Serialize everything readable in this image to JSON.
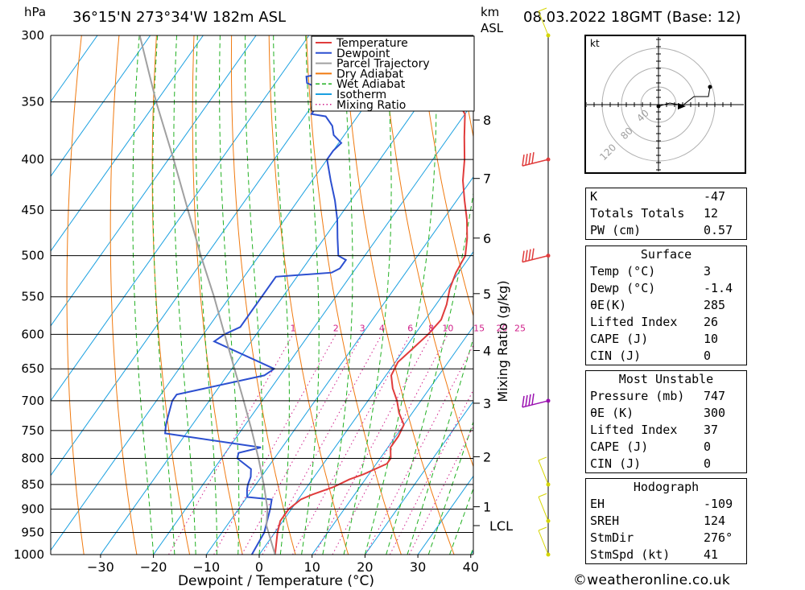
{
  "header": {
    "location": "36°15'N  273°34'W  182m  ASL",
    "datetime": "08.03.2022  18GMT  (Base: 12)",
    "hpa_label": "hPa",
    "km_label": "km",
    "asl_label": "ASL"
  },
  "chart_data": {
    "type": "line",
    "subtype": "skew-t log-p diagram",
    "xlabel": "Dewpoint / Temperature (°C)",
    "ylabel_right": "Mixing Ratio (g/kg)",
    "x_ticks": [
      -30,
      -20,
      -10,
      0,
      10,
      20,
      30,
      40
    ],
    "xlim": [
      -40,
      40
    ],
    "pressure_levels": [
      300,
      350,
      400,
      450,
      500,
      550,
      600,
      650,
      700,
      750,
      800,
      850,
      900,
      950,
      1000
    ],
    "ylim_hpa": [
      1000,
      300
    ],
    "km_ticks": [
      {
        "label": "1",
        "p": 895
      },
      {
        "label": "2",
        "p": 797
      },
      {
        "label": "3",
        "p": 704
      },
      {
        "label": "4",
        "p": 623
      },
      {
        "label": "5",
        "p": 546
      },
      {
        "label": "6",
        "p": 480
      },
      {
        "label": "7",
        "p": 418
      },
      {
        "label": "8",
        "p": 365
      }
    ],
    "lcl": {
      "label": "LCL",
      "p": 935
    },
    "mixing_ratio_labels": [
      "1",
      "2",
      "3",
      "4",
      "6",
      "8",
      "10",
      "15",
      "20",
      "25"
    ],
    "legend": {
      "placement": "top-right",
      "entries": [
        {
          "name": "Temperature",
          "color": "#e03c3c",
          "style": "solid"
        },
        {
          "name": "Dewpoint",
          "color": "#2c4fd0",
          "style": "solid"
        },
        {
          "name": "Parcel Trajectory",
          "color": "#a0a0a0",
          "style": "solid"
        },
        {
          "name": "Dry Adiabat",
          "color": "#f07a10",
          "style": "solid"
        },
        {
          "name": "Wet Adiabat",
          "color": "#22b022",
          "style": "dashed"
        },
        {
          "name": "Isotherm",
          "color": "#1aa0e0",
          "style": "solid"
        },
        {
          "name": "Mixing Ratio",
          "color": "#d0208a",
          "style": "dotted"
        }
      ]
    },
    "series": [
      {
        "name": "Temperature",
        "color": "#e03c3c",
        "points": [
          [
            1000,
            3.0
          ],
          [
            950,
            0.5
          ],
          [
            925,
            -0.5
          ],
          [
            900,
            -0.5
          ],
          [
            880,
            0.5
          ],
          [
            870,
            2.0
          ],
          [
            855,
            5.0
          ],
          [
            840,
            7.0
          ],
          [
            830,
            9.0
          ],
          [
            810,
            12.0
          ],
          [
            800,
            12.0
          ],
          [
            780,
            10.5
          ],
          [
            760,
            10.5
          ],
          [
            740,
            10.0
          ],
          [
            720,
            7.5
          ],
          [
            700,
            5.5
          ],
          [
            680,
            3.0
          ],
          [
            660,
            1.0
          ],
          [
            640,
            0.5
          ],
          [
            620,
            1.5
          ],
          [
            600,
            2.5
          ],
          [
            580,
            3.0
          ],
          [
            560,
            2.0
          ],
          [
            540,
            0.5
          ],
          [
            520,
            -0.5
          ],
          [
            500,
            -1.0
          ],
          [
            480,
            -3.0
          ],
          [
            460,
            -5.5
          ],
          [
            440,
            -8.5
          ],
          [
            420,
            -11.5
          ],
          [
            400,
            -14.0
          ],
          [
            380,
            -17.0
          ],
          [
            360,
            -20.0
          ],
          [
            350,
            -23.0
          ],
          [
            340,
            -25.5
          ],
          [
            330,
            -26.0
          ],
          [
            320,
            -27.0
          ],
          [
            310,
            -29.0
          ],
          [
            300,
            -32.0
          ]
        ]
      },
      {
        "name": "Dewpoint",
        "color": "#2c4fd0",
        "points": [
          [
            1000,
            -1.4
          ],
          [
            950,
            -2.0
          ],
          [
            925,
            -3.0
          ],
          [
            900,
            -4.0
          ],
          [
            880,
            -5.0
          ],
          [
            875,
            -10.0
          ],
          [
            860,
            -11.0
          ],
          [
            850,
            -11.5
          ],
          [
            835,
            -12.0
          ],
          [
            820,
            -13.0
          ],
          [
            800,
            -17.0
          ],
          [
            790,
            -17.5
          ],
          [
            780,
            -14.0
          ],
          [
            755,
            -34.0
          ],
          [
            740,
            -35.0
          ],
          [
            720,
            -36.0
          ],
          [
            700,
            -37.0
          ],
          [
            690,
            -37.0
          ],
          [
            660,
            -23.0
          ],
          [
            650,
            -22.0
          ],
          [
            610,
            -37.0
          ],
          [
            600,
            -36.0
          ],
          [
            590,
            -34.0
          ],
          [
            560,
            -34.0
          ],
          [
            540,
            -34.0
          ],
          [
            525,
            -34.0
          ],
          [
            520,
            -24.0
          ],
          [
            515,
            -23.0
          ],
          [
            505,
            -23.0
          ],
          [
            500,
            -25.0
          ],
          [
            480,
            -27.5
          ],
          [
            460,
            -30.0
          ],
          [
            440,
            -33.0
          ],
          [
            420,
            -36.5
          ],
          [
            400,
            -40.0
          ],
          [
            392,
            -40.0
          ],
          [
            385,
            -39.5
          ],
          [
            378,
            -42.0
          ],
          [
            370,
            -43.5
          ],
          [
            362,
            -46.0
          ],
          [
            360,
            -49.0
          ],
          [
            352,
            -49.0
          ],
          [
            345,
            -51.0
          ],
          [
            340,
            -50.5
          ],
          [
            335,
            -54.0
          ],
          [
            330,
            -55.0
          ],
          [
            326,
            -50.0
          ],
          [
            320,
            -48.0
          ],
          [
            315,
            -47.5
          ],
          [
            310,
            -51.5
          ],
          [
            305,
            -53.0
          ],
          [
            300,
            -54.5
          ]
        ]
      },
      {
        "name": "Parcel Trajectory",
        "color": "#a0a0a0",
        "points": [
          [
            1000,
            3.0
          ],
          [
            935,
            -2.5
          ],
          [
            900,
            -4.5
          ],
          [
            850,
            -8.5
          ],
          [
            800,
            -13.0
          ],
          [
            750,
            -18.0
          ],
          [
            700,
            -23.5
          ],
          [
            650,
            -29.5
          ],
          [
            600,
            -36.0
          ],
          [
            550,
            -43.0
          ],
          [
            500,
            -51.0
          ],
          [
            450,
            -59.5
          ],
          [
            400,
            -69.0
          ],
          [
            350,
            -80.0
          ],
          [
            300,
            -92.0
          ]
        ]
      }
    ],
    "winds": [
      {
        "p": 1000,
        "color": "#d6d600",
        "barb": "light"
      },
      {
        "p": 925,
        "color": "#d6d600",
        "barb": "light"
      },
      {
        "p": 850,
        "color": "#d6d600",
        "barb": "light"
      },
      {
        "p": 700,
        "color": "#9a0fb0",
        "barb": "strong"
      },
      {
        "p": 500,
        "color": "#e03c3c",
        "barb": "strong"
      },
      {
        "p": 400,
        "color": "#e03c3c",
        "barb": "strong"
      },
      {
        "p": 300,
        "color": "#d6d600",
        "barb": "light"
      }
    ],
    "hodograph": {
      "unit_label": "kt",
      "ring_labels": [
        "40",
        "80",
        "120"
      ]
    }
  },
  "indices": [
    {
      "label": "K",
      "value": "-47"
    },
    {
      "label": "Totals Totals",
      "value": "12"
    },
    {
      "label": "PW (cm)",
      "value": "0.57"
    }
  ],
  "surface": {
    "title": "Surface",
    "rows": [
      {
        "label": "Temp (°C)",
        "value": "3"
      },
      {
        "label": "Dewp (°C)",
        "value": "-1.4"
      },
      {
        "label": "θE(K)",
        "value": "285"
      },
      {
        "label": "Lifted Index",
        "value": "26"
      },
      {
        "label": "CAPE (J)",
        "value": "10"
      },
      {
        "label": "CIN (J)",
        "value": "0"
      }
    ]
  },
  "most_unstable": {
    "title": "Most Unstable",
    "rows": [
      {
        "label": "Pressure (mb)",
        "value": "747"
      },
      {
        "label": "θE (K)",
        "value": "300"
      },
      {
        "label": "Lifted Index",
        "value": "37"
      },
      {
        "label": "CAPE (J)",
        "value": "0"
      },
      {
        "label": "CIN (J)",
        "value": "0"
      }
    ]
  },
  "hodograph_table": {
    "title": "Hodograph",
    "rows": [
      {
        "label": "EH",
        "value": "-109"
      },
      {
        "label": "SREH",
        "value": "124"
      },
      {
        "label": "StmDir",
        "value": "276°"
      },
      {
        "label": "StmSpd (kt)",
        "value": "41"
      }
    ]
  },
  "footer": "©weatheronline.co.uk"
}
